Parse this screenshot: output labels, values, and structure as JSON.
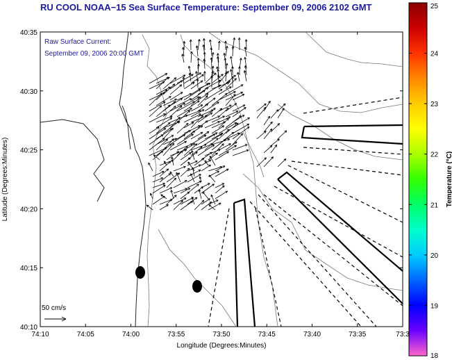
{
  "title": "RU COOL  NOAA−15  Sea Surface Temperature:  September 09, 2006 2102 GMT",
  "legend": {
    "line1": "Raw Surface Current:",
    "line2": "September 09, 2006 20:00 GMT",
    "scale_label": "50 cm/s"
  },
  "axes": {
    "xlabel": "Longitude (Degrees:Minutes)",
    "ylabel": "Latitude (Degrees:Minutes)",
    "xticks": [
      "74:10",
      "74:05",
      "74:00",
      "73:55",
      "73:50",
      "73:45",
      "73:40",
      "73:35",
      "73:3"
    ],
    "yticks": [
      "40:35",
      "40:30",
      "40:25",
      "40:20",
      "40:15",
      "40:10"
    ]
  },
  "colorbar": {
    "label": "Temperature (°C)",
    "ticks": [
      "25",
      "24",
      "23",
      "22",
      "21",
      "20",
      "19",
      "18"
    ],
    "min": 18,
    "max": 25,
    "colors": [
      "#ff66cc",
      "#6a00ff",
      "#0000ff",
      "#0066ff",
      "#00ccff",
      "#00ffcc",
      "#00ff66",
      "#33ff00",
      "#aaff00",
      "#ffff00",
      "#ffcc00",
      "#ff8800",
      "#ff3300",
      "#cc0000",
      "#880000"
    ]
  },
  "markers": [
    {
      "name": "buoy-marker-west"
    },
    {
      "name": "buoy-marker-east"
    }
  ]
}
